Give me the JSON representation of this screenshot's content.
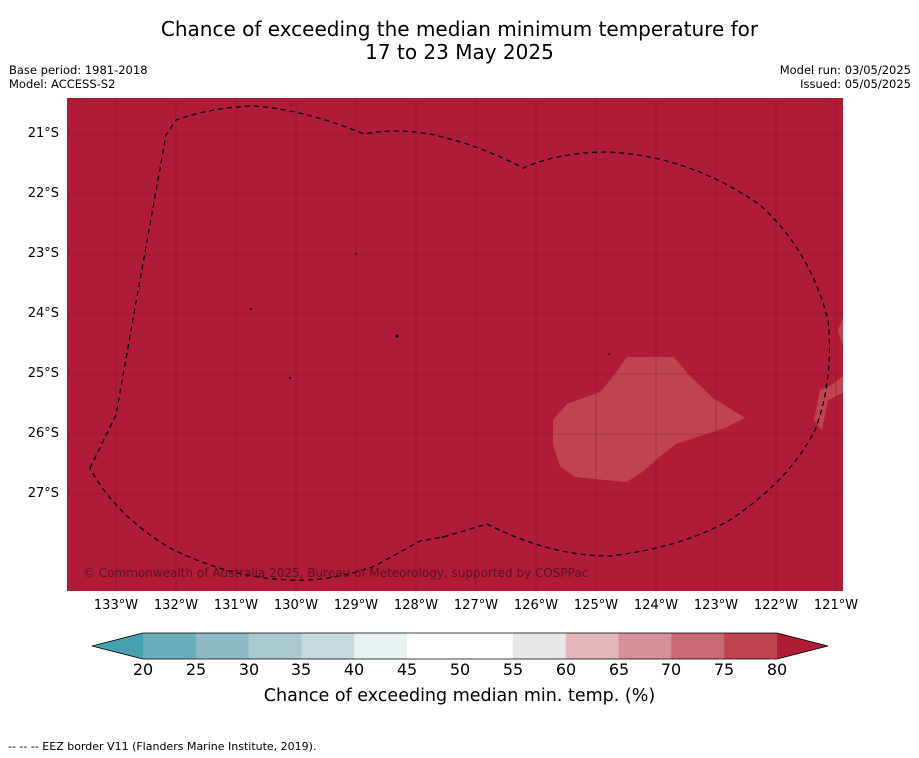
{
  "title_line1": "Chance of exceeding the median minimum temperature for",
  "title_line2": "17 to 23 May 2025",
  "meta_left": [
    "Base period: 1981-2018",
    "Model: ACCESS-S2"
  ],
  "meta_right": [
    "Model run: 03/05/2025",
    "Issued: 05/05/2025"
  ],
  "copyright": "© Commonwealth of Australia 2025, Bureau of Meteorology, supported by COSPPac",
  "lat_labels": [
    "21°S",
    "22°S",
    "23°S",
    "24°S",
    "25°S",
    "26°S",
    "27°S"
  ],
  "lon_labels": [
    "133°W",
    "132°W",
    "131°W",
    "130°W",
    "129°W",
    "128°W",
    "127°W",
    "126°W",
    "125°W",
    "124°W",
    "123°W",
    "122°W",
    "121°W"
  ],
  "colorbar": {
    "ticks": [
      "20",
      "25",
      "30",
      "35",
      "40",
      "45",
      "50",
      "55",
      "60",
      "65",
      "70",
      "75",
      "80"
    ],
    "colors": [
      "#6aaebb",
      "#8ebac5",
      "#a9c9cf",
      "#c9dade",
      "#eaf1f3",
      "#ffffff",
      "#ffffff",
      "#e8e8e8",
      "#e3b8bd",
      "#d7919a",
      "#cb6a76",
      "#c0444f"
    ],
    "under_color": "#45a0b0",
    "over_color": "#b01c38",
    "label": "Chance of exceeding median min. temp. (%)"
  },
  "map_colors": {
    "background": "#b01c38",
    "patch": "#c0444f",
    "grid": "#7a1426"
  },
  "footer": "--  --  -- EEZ border V11 (Flanders Marine Institute, 2019)."
}
